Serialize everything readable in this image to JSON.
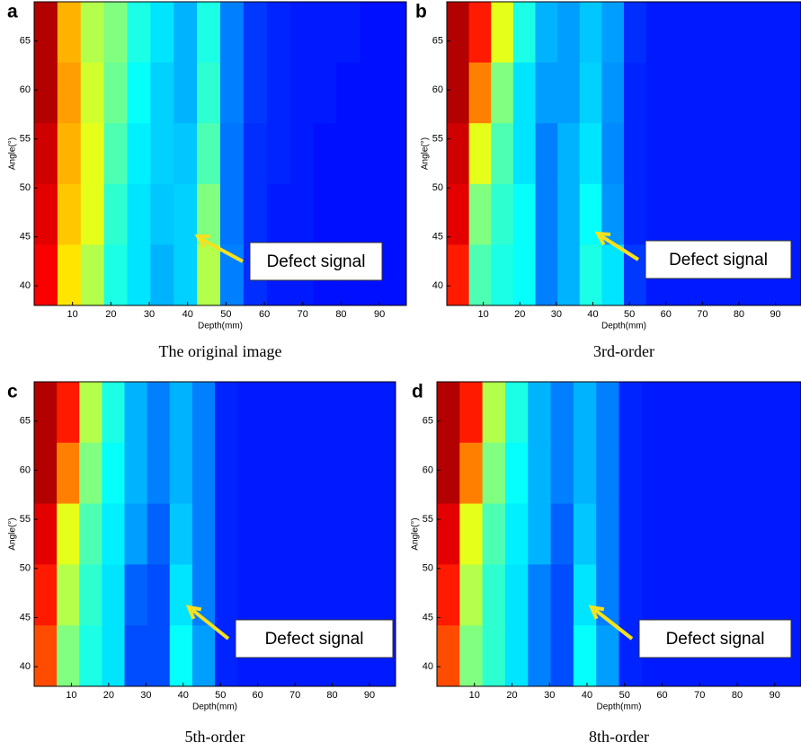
{
  "chart_data": [
    {
      "type": "heatmap",
      "panel_label": "a",
      "caption": "The original image",
      "xlabel": "Depth(mm)",
      "ylabel": "Angle(°)",
      "annotation": "Defect signal",
      "colormap": "jet",
      "xlim": [
        0,
        97
      ],
      "xticks": [
        10,
        20,
        30,
        40,
        50,
        60,
        70,
        80,
        90
      ],
      "ylim": [
        38,
        69
      ],
      "yticks": [
        40,
        45,
        50,
        55,
        60,
        65
      ],
      "z": [
        [
          0.95,
          0.7,
          0.55,
          0.5,
          0.4,
          0.35,
          0.3,
          0.4,
          0.25,
          0.18,
          0.16,
          0.15,
          0.15,
          0.15,
          0.14,
          0.14
        ],
        [
          0.95,
          0.72,
          0.58,
          0.48,
          0.38,
          0.33,
          0.3,
          0.42,
          0.25,
          0.18,
          0.16,
          0.15,
          0.15,
          0.14,
          0.14,
          0.14
        ],
        [
          0.92,
          0.7,
          0.6,
          0.45,
          0.36,
          0.33,
          0.32,
          0.45,
          0.24,
          0.17,
          0.16,
          0.15,
          0.14,
          0.14,
          0.14,
          0.14
        ],
        [
          0.9,
          0.68,
          0.6,
          0.42,
          0.35,
          0.32,
          0.33,
          0.5,
          0.24,
          0.17,
          0.15,
          0.15,
          0.14,
          0.14,
          0.14,
          0.14
        ],
        [
          0.88,
          0.65,
          0.55,
          0.4,
          0.35,
          0.3,
          0.33,
          0.55,
          0.25,
          0.17,
          0.15,
          0.15,
          0.14,
          0.14,
          0.14,
          0.14
        ]
      ]
    },
    {
      "type": "heatmap",
      "panel_label": "b",
      "caption": "3rd-order",
      "xlabel": "Depth(mm)",
      "ylabel": "Angle(°)",
      "annotation": "Defect signal",
      "colormap": "jet",
      "xlim": [
        0,
        97
      ],
      "xticks": [
        10,
        20,
        30,
        40,
        50,
        60,
        70,
        80,
        90
      ],
      "ylim": [
        38,
        69
      ],
      "yticks": [
        40,
        45,
        50,
        55,
        60,
        65
      ],
      "z": [
        [
          0.95,
          0.85,
          0.6,
          0.4,
          0.3,
          0.28,
          0.32,
          0.28,
          0.17,
          0.15,
          0.15,
          0.15,
          0.15,
          0.15,
          0.15,
          0.15
        ],
        [
          0.95,
          0.75,
          0.5,
          0.35,
          0.28,
          0.28,
          0.33,
          0.27,
          0.16,
          0.15,
          0.15,
          0.15,
          0.15,
          0.15,
          0.15,
          0.15
        ],
        [
          0.92,
          0.6,
          0.45,
          0.35,
          0.25,
          0.3,
          0.35,
          0.26,
          0.16,
          0.15,
          0.15,
          0.15,
          0.15,
          0.15,
          0.15,
          0.15
        ],
        [
          0.9,
          0.5,
          0.42,
          0.38,
          0.25,
          0.3,
          0.38,
          0.27,
          0.16,
          0.15,
          0.15,
          0.15,
          0.15,
          0.15,
          0.15,
          0.15
        ],
        [
          0.85,
          0.45,
          0.4,
          0.38,
          0.25,
          0.3,
          0.4,
          0.35,
          0.18,
          0.15,
          0.15,
          0.15,
          0.15,
          0.15,
          0.15,
          0.15
        ]
      ]
    },
    {
      "type": "heatmap",
      "panel_label": "c",
      "caption": "5th-order",
      "xlabel": "Depth(mm)",
      "ylabel": "Angle(°)",
      "annotation": "Defect signal",
      "colormap": "jet",
      "xlim": [
        0,
        97
      ],
      "xticks": [
        10,
        20,
        30,
        40,
        50,
        60,
        70,
        80,
        90
      ],
      "ylim": [
        38,
        69
      ],
      "yticks": [
        40,
        45,
        50,
        55,
        60,
        65
      ],
      "z": [
        [
          0.95,
          0.85,
          0.55,
          0.4,
          0.3,
          0.25,
          0.3,
          0.25,
          0.16,
          0.15,
          0.15,
          0.15,
          0.15,
          0.15,
          0.15,
          0.15
        ],
        [
          0.95,
          0.75,
          0.5,
          0.38,
          0.3,
          0.25,
          0.3,
          0.25,
          0.16,
          0.15,
          0.15,
          0.15,
          0.15,
          0.15,
          0.15,
          0.15
        ],
        [
          0.9,
          0.6,
          0.45,
          0.36,
          0.28,
          0.22,
          0.32,
          0.25,
          0.16,
          0.15,
          0.15,
          0.15,
          0.15,
          0.15,
          0.15,
          0.15
        ],
        [
          0.85,
          0.55,
          0.42,
          0.35,
          0.22,
          0.2,
          0.35,
          0.25,
          0.16,
          0.15,
          0.15,
          0.15,
          0.15,
          0.15,
          0.15,
          0.15
        ],
        [
          0.8,
          0.5,
          0.4,
          0.35,
          0.2,
          0.2,
          0.38,
          0.28,
          0.16,
          0.15,
          0.15,
          0.15,
          0.15,
          0.15,
          0.15,
          0.15
        ]
      ]
    },
    {
      "type": "heatmap",
      "panel_label": "d",
      "caption": "8th-order",
      "xlabel": "Depth(mm)",
      "ylabel": "Angle(°)",
      "annotation": "Defect signal",
      "colormap": "jet",
      "xlim": [
        0,
        97
      ],
      "xticks": [
        10,
        20,
        30,
        40,
        50,
        60,
        70,
        80,
        90
      ],
      "ylim": [
        38,
        69
      ],
      "yticks": [
        40,
        45,
        50,
        55,
        60,
        65
      ],
      "z": [
        [
          0.95,
          0.85,
          0.55,
          0.4,
          0.3,
          0.25,
          0.3,
          0.25,
          0.16,
          0.15,
          0.15,
          0.15,
          0.15,
          0.15,
          0.15,
          0.15
        ],
        [
          0.95,
          0.75,
          0.5,
          0.38,
          0.3,
          0.25,
          0.3,
          0.25,
          0.16,
          0.15,
          0.15,
          0.15,
          0.15,
          0.15,
          0.15,
          0.15
        ],
        [
          0.9,
          0.6,
          0.45,
          0.36,
          0.3,
          0.22,
          0.32,
          0.25,
          0.16,
          0.15,
          0.15,
          0.15,
          0.15,
          0.15,
          0.15,
          0.15
        ],
        [
          0.85,
          0.55,
          0.42,
          0.35,
          0.25,
          0.2,
          0.35,
          0.25,
          0.16,
          0.15,
          0.15,
          0.15,
          0.15,
          0.15,
          0.15,
          0.15
        ],
        [
          0.8,
          0.5,
          0.42,
          0.35,
          0.25,
          0.2,
          0.38,
          0.28,
          0.16,
          0.15,
          0.15,
          0.15,
          0.15,
          0.15,
          0.15,
          0.15
        ]
      ]
    }
  ]
}
